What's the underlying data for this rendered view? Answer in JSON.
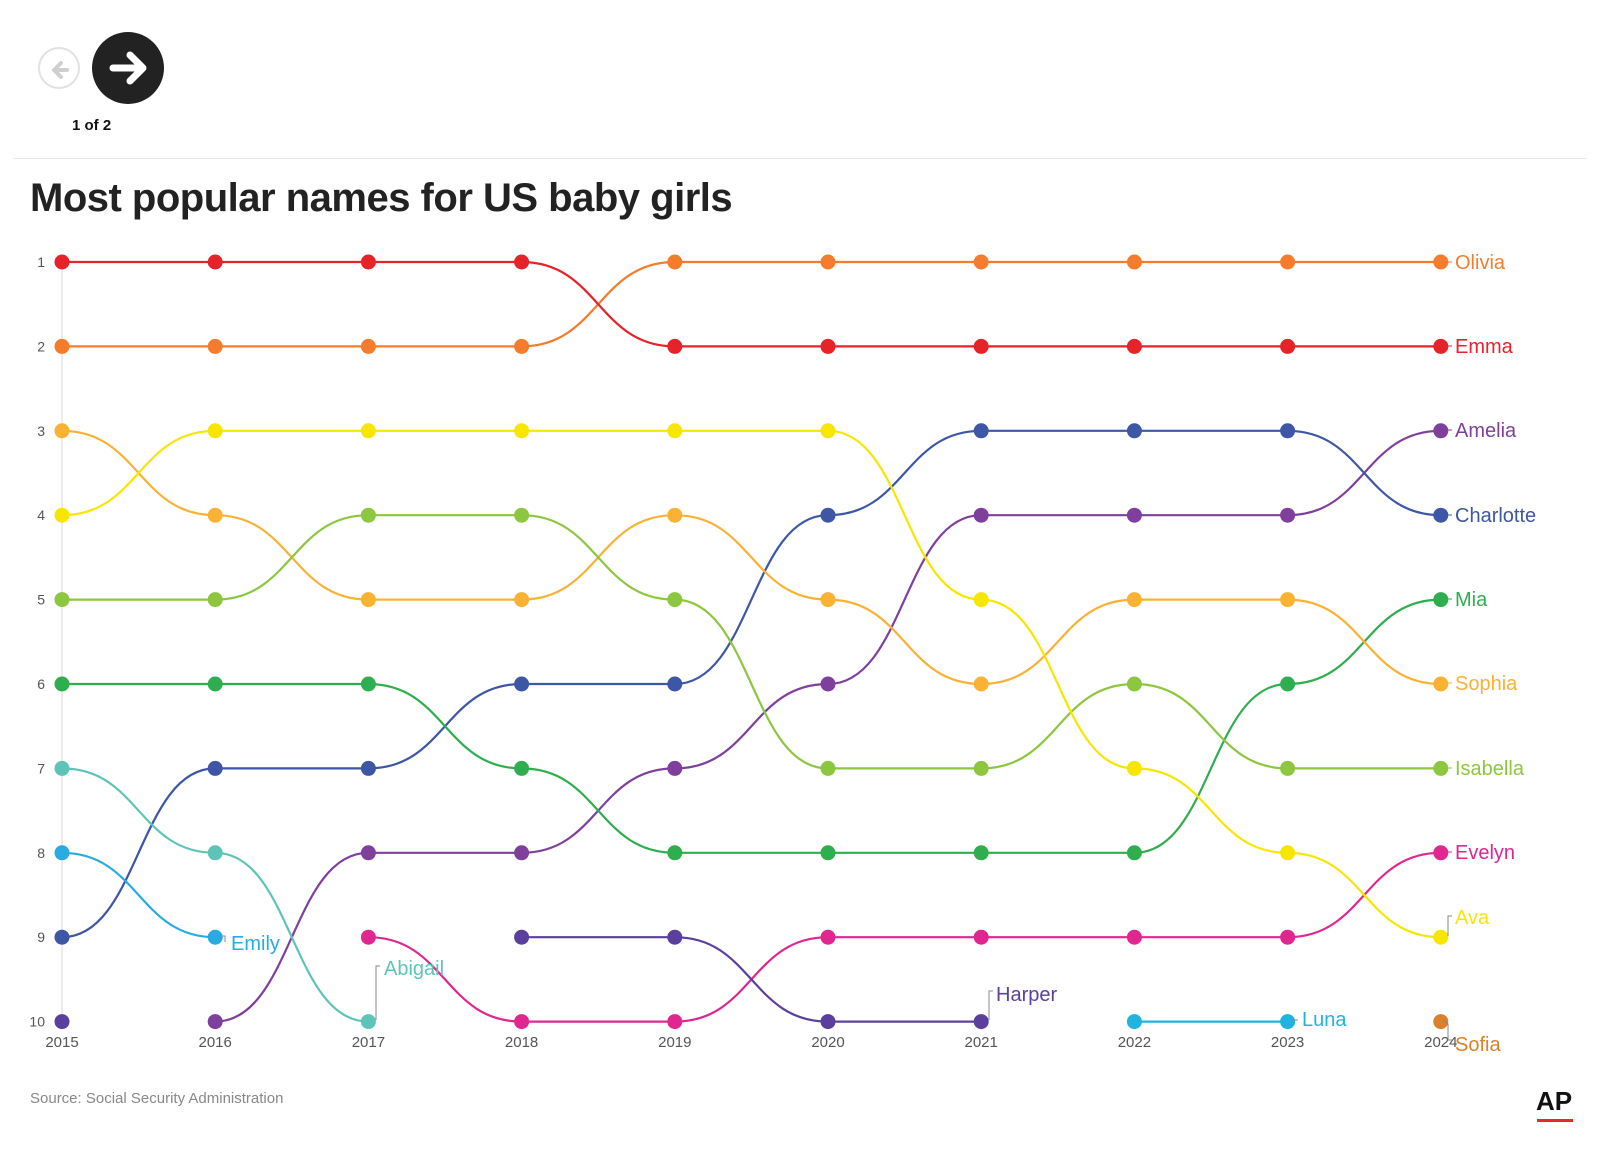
{
  "nav": {
    "counter": "1 of 2",
    "prev_icon": "arrow-left-icon",
    "next_icon": "arrow-right-icon"
  },
  "title": "Most popular names for US baby girls",
  "source": "Source: Social Security Administration",
  "brand": "AP",
  "chart_data": {
    "type": "line",
    "title": "Most popular names for US baby girls",
    "x": [
      2015,
      2016,
      2017,
      2018,
      2019,
      2020,
      2021,
      2022,
      2023,
      2024
    ],
    "y_ticks": [
      1,
      2,
      3,
      4,
      5,
      6,
      7,
      8,
      9,
      10
    ],
    "ylim": [
      1,
      10
    ],
    "y_inverted": true,
    "grid": false,
    "series": [
      {
        "name": "Olivia",
        "color": "#f47c2c",
        "values": [
          2,
          2,
          2,
          2,
          1,
          1,
          1,
          1,
          1,
          1
        ]
      },
      {
        "name": "Emma",
        "color": "#e52329",
        "values": [
          1,
          1,
          1,
          1,
          2,
          2,
          2,
          2,
          2,
          2
        ]
      },
      {
        "name": "Amelia",
        "color": "#7e3f9d",
        "values": [
          null,
          10,
          8,
          8,
          7,
          6,
          4,
          4,
          4,
          3
        ]
      },
      {
        "name": "Charlotte",
        "color": "#3d56a6",
        "values": [
          9,
          7,
          7,
          6,
          6,
          4,
          3,
          3,
          3,
          4
        ]
      },
      {
        "name": "Mia",
        "color": "#2fae4f",
        "values": [
          6,
          6,
          6,
          7,
          8,
          8,
          8,
          8,
          6,
          5
        ]
      },
      {
        "name": "Sophia",
        "color": "#f9b233",
        "values": [
          3,
          4,
          5,
          5,
          4,
          5,
          6,
          5,
          5,
          6
        ]
      },
      {
        "name": "Isabella",
        "color": "#8dc63f",
        "values": [
          5,
          5,
          4,
          4,
          5,
          7,
          7,
          6,
          7,
          7
        ]
      },
      {
        "name": "Evelyn",
        "color": "#e0268f",
        "values": [
          null,
          null,
          9,
          10,
          10,
          9,
          9,
          9,
          9,
          8
        ]
      },
      {
        "name": "Ava",
        "color": "#f7e600",
        "values": [
          4,
          3,
          3,
          3,
          3,
          3,
          5,
          7,
          8,
          9
        ]
      },
      {
        "name": "Emily",
        "color": "#29abe2",
        "values": [
          8,
          9,
          null,
          null,
          null,
          null,
          null,
          null,
          null,
          null
        ]
      },
      {
        "name": "Abigail",
        "color": "#5fc4b8",
        "values": [
          7,
          8,
          10,
          null,
          null,
          null,
          null,
          null,
          null,
          null
        ]
      },
      {
        "name": "Harper",
        "color": "#5b3f9e",
        "values": [
          10,
          null,
          null,
          9,
          9,
          10,
          10,
          null,
          null,
          null
        ]
      },
      {
        "name": "Luna",
        "color": "#1fb4e0",
        "values": [
          null,
          null,
          null,
          null,
          null,
          null,
          null,
          10,
          10,
          null
        ]
      },
      {
        "name": "Sofia",
        "color": "#d9822b",
        "values": [
          null,
          null,
          null,
          null,
          null,
          null,
          null,
          null,
          null,
          10
        ]
      }
    ]
  }
}
